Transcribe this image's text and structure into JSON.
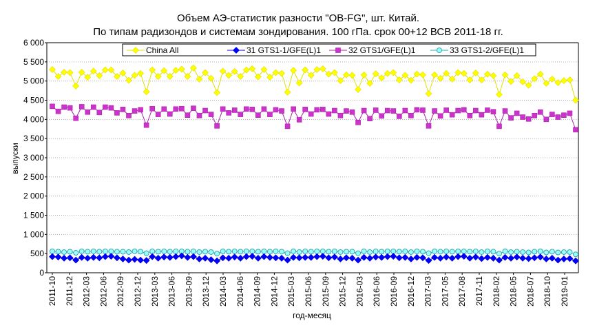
{
  "chart_data": {
    "type": "line",
    "title_lines": [
      "Объем АЭ-статистик разности \"OB-FG\", шт. Китай.",
      "По типам радизондов и системам зондирования. 100 гПа. срок 00+12 ВСВ 2011-18 гг."
    ],
    "xlabel": "год-месяц",
    "ylabel": "выпуски",
    "ylim": [
      0,
      6000
    ],
    "y_ticks": [
      0,
      500,
      1000,
      1500,
      2000,
      2500,
      3000,
      3500,
      4000,
      4500,
      5000,
      5500,
      6000
    ],
    "y_tick_labels": [
      "0",
      "500",
      "1 000",
      "1 500",
      "2 000",
      "2 500",
      "3 000",
      "3 500",
      "4 000",
      "4 500",
      "5 000",
      "5 500",
      "6 000"
    ],
    "x_tick_labels": [
      "2011-10",
      "2011-12",
      "2012-03",
      "2012-06",
      "2012-09",
      "2012-12",
      "2013-03",
      "2013-06",
      "2013-09",
      "2013-12",
      "2014-03",
      "2014-06",
      "2014-09",
      "2014-12",
      "2015-03",
      "2015-06",
      "2015-09",
      "2015-12",
      "2016-03",
      "2016-06",
      "2016-09",
      "2016-12",
      "2017-03",
      "2017-05",
      "2017-08",
      "2017-11",
      "2018-02",
      "2018-05",
      "2018-07",
      "2018-10",
      "2019-01"
    ],
    "grid": true,
    "legend_position": "top",
    "series": [
      {
        "name": "China All",
        "color": "#ffff00",
        "stroke": "#e0e000",
        "marker": "diamond",
        "values": [
          5300,
          5120,
          5230,
          5220,
          4870,
          5230,
          5100,
          5260,
          5140,
          5290,
          5290,
          5120,
          5210,
          5020,
          5150,
          5200,
          4720,
          5290,
          5120,
          5270,
          5120,
          5280,
          5310,
          5120,
          5340,
          5050,
          5220,
          5070,
          4700,
          5260,
          5150,
          5250,
          5120,
          5290,
          5320,
          5110,
          5300,
          5100,
          5220,
          5200,
          4710,
          5280,
          4950,
          5290,
          5150,
          5300,
          5320,
          5180,
          5220,
          5010,
          5160,
          5150,
          4780,
          5160,
          4940,
          5190,
          5080,
          5200,
          5220,
          5030,
          5150,
          5020,
          5180,
          5160,
          4670,
          5160,
          5070,
          5200,
          5050,
          5220,
          5200,
          5030,
          5210,
          5030,
          5180,
          5140,
          4650,
          5160,
          4990,
          5140,
          4980,
          4890,
          5060,
          5180,
          4940,
          5050,
          4960,
          5010,
          5030,
          4500
        ]
      },
      {
        "name": "31 GTS1-1/GFE(L)1",
        "color": "#0000ff",
        "stroke": "#0000cc",
        "marker": "diamond",
        "values": [
          420,
          410,
          380,
          390,
          330,
          400,
          380,
          400,
          390,
          420,
          430,
          390,
          360,
          330,
          350,
          330,
          320,
          420,
          380,
          410,
          400,
          420,
          440,
          400,
          420,
          360,
          380,
          340,
          310,
          390,
          380,
          410,
          380,
          420,
          430,
          380,
          420,
          400,
          390,
          380,
          330,
          400,
          390,
          400,
          400,
          420,
          430,
          390,
          410,
          360,
          390,
          380,
          330,
          400,
          380,
          410,
          400,
          420,
          430,
          390,
          400,
          360,
          400,
          390,
          320,
          400,
          380,
          410,
          380,
          420,
          430,
          380,
          410,
          370,
          400,
          380,
          330,
          400,
          380,
          410,
          380,
          370,
          390,
          410,
          360,
          380,
          330,
          360,
          370,
          310
        ]
      },
      {
        "name": "32 GTS1/GFE(L)1",
        "color": "#cc33cc",
        "stroke": "#aa22aa",
        "marker": "square",
        "values": [
          4340,
          4210,
          4320,
          4300,
          4030,
          4330,
          4190,
          4320,
          4180,
          4320,
          4300,
          4170,
          4260,
          4100,
          4220,
          4250,
          3850,
          4280,
          4130,
          4270,
          4140,
          4270,
          4280,
          4110,
          4290,
          4100,
          4230,
          4130,
          3830,
          4270,
          4170,
          4240,
          4130,
          4270,
          4260,
          4110,
          4270,
          4130,
          4250,
          4220,
          3820,
          4270,
          3990,
          4260,
          4140,
          4250,
          4260,
          4140,
          4230,
          4100,
          4220,
          4190,
          3920,
          4230,
          4020,
          4240,
          4090,
          4230,
          4220,
          4080,
          4230,
          4100,
          4250,
          4240,
          3830,
          4220,
          4090,
          4240,
          4120,
          4230,
          4250,
          4100,
          4230,
          4120,
          4240,
          4200,
          3820,
          4220,
          4040,
          4160,
          4060,
          4010,
          4100,
          4190,
          4000,
          4130,
          4060,
          4110,
          4160,
          3730
        ]
      },
      {
        "name": "33 GTS1-2/GFE(L)1",
        "color": "#99ffff",
        "stroke": "#33aaaa",
        "marker": "circle",
        "values": [
          560,
          550,
          540,
          550,
          520,
          560,
          550,
          560,
          550,
          560,
          560,
          550,
          550,
          540,
          560,
          550,
          510,
          560,
          550,
          560,
          550,
          560,
          560,
          550,
          560,
          540,
          550,
          540,
          500,
          560,
          550,
          560,
          550,
          560,
          560,
          550,
          560,
          550,
          560,
          550,
          510,
          560,
          540,
          560,
          550,
          560,
          560,
          550,
          560,
          540,
          550,
          550,
          510,
          560,
          540,
          560,
          550,
          560,
          560,
          550,
          560,
          540,
          560,
          550,
          510,
          560,
          550,
          560,
          550,
          560,
          560,
          550,
          560,
          540,
          560,
          550,
          500,
          560,
          540,
          550,
          540,
          530,
          550,
          560,
          530,
          550,
          530,
          540,
          540,
          480
        ]
      }
    ]
  }
}
